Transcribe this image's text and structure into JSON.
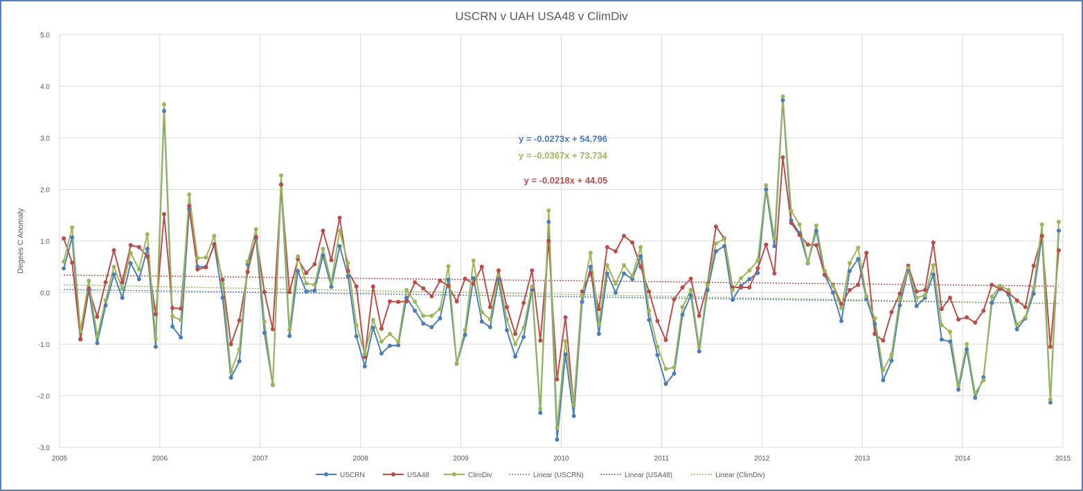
{
  "chart_data": {
    "type": "line",
    "title": "USCRN v UAH USA48 v ClimDiv",
    "ylabel": "Degees  C Anomaly",
    "xlabel": "",
    "xlim": [
      2005,
      2015
    ],
    "ylim": [
      -3.0,
      5.0
    ],
    "x_ticks": [
      "2005",
      "2006",
      "2007",
      "2008",
      "2009",
      "2010",
      "2011",
      "2012",
      "2013",
      "2014",
      "2015"
    ],
    "y_ticks": [
      "5.0",
      "4.0",
      "3.0",
      "2.0",
      "1.0",
      "0.0",
      "-1.0",
      "-2.0",
      "-3.0"
    ],
    "grid": true,
    "legend_position": "bottom",
    "x_start": 2005.042,
    "x_step": 0.08333,
    "series": [
      {
        "name": "USCRN",
        "color": "#4a7ebb",
        "values": [
          0.47,
          1.07,
          -0.91,
          0.05,
          -0.98,
          -0.25,
          0.35,
          -0.1,
          0.57,
          0.26,
          0.85,
          -1.05,
          3.52,
          -0.66,
          -0.87,
          1.62,
          0.5,
          0.5,
          0.93,
          -0.1,
          -1.65,
          -1.33,
          0.55,
          1.05,
          -0.78,
          -1.79,
          2.1,
          -0.84,
          0.42,
          0.02,
          0.04,
          0.72,
          0.11,
          0.9,
          0.32,
          -0.85,
          -1.43,
          -0.68,
          -1.18,
          -1.03,
          -1.02,
          -0.1,
          -0.35,
          -0.6,
          -0.67,
          -0.5,
          0.25,
          -1.38,
          -0.82,
          0.28,
          -0.56,
          -0.67,
          0.25,
          -0.73,
          -1.24,
          -0.86,
          0.05,
          -2.33,
          1.37,
          -2.85,
          -1.2,
          -2.39,
          -0.18,
          0.5,
          -0.8,
          0.37,
          0.0,
          0.37,
          0.26,
          0.7,
          -0.53,
          -1.21,
          -1.77,
          -1.57,
          -0.43,
          -0.05,
          -1.14,
          0.05,
          0.8,
          0.9,
          -0.14,
          0.13,
          0.26,
          0.38,
          2.0,
          0.9,
          3.73,
          1.4,
          1.15,
          0.57,
          1.2,
          0.34,
          0.0,
          -0.55,
          0.42,
          0.65,
          -0.12,
          -0.61,
          -1.7,
          -1.32,
          -0.25,
          0.45,
          -0.26,
          -0.1,
          0.35,
          -0.91,
          -0.95,
          -1.88,
          -1.1,
          -2.04,
          -1.64,
          -0.2,
          0.11,
          -0.04,
          -0.71,
          -0.5,
          -0.02,
          1.1,
          -2.13,
          1.2
        ]
      },
      {
        "name": "USA48",
        "color": "#be4b48",
        "values": [
          1.05,
          0.58,
          -0.9,
          0.08,
          -0.47,
          0.2,
          0.82,
          0.2,
          0.92,
          0.88,
          0.7,
          -0.42,
          1.52,
          -0.3,
          -0.31,
          1.68,
          0.45,
          0.49,
          0.94,
          0.25,
          -1.0,
          -0.54,
          0.4,
          1.08,
          0.01,
          -0.71,
          2.09,
          0.01,
          0.65,
          0.38,
          0.55,
          1.2,
          0.63,
          1.45,
          0.42,
          0.12,
          -1.25,
          0.12,
          -0.7,
          -0.17,
          -0.18,
          -0.17,
          0.2,
          0.08,
          -0.07,
          0.23,
          0.13,
          -0.17,
          0.27,
          0.17,
          0.5,
          -0.28,
          0.43,
          -0.28,
          -0.8,
          -0.2,
          0.43,
          -0.93,
          1.0,
          -1.68,
          -0.48,
          -2.18,
          0.02,
          0.38,
          -0.32,
          0.88,
          0.8,
          1.1,
          0.97,
          0.5,
          0.02,
          -0.55,
          -0.92,
          -0.13,
          0.1,
          0.27,
          -0.45,
          0.17,
          1.28,
          1.05,
          0.1,
          0.1,
          0.1,
          0.47,
          0.93,
          0.37,
          2.62,
          1.35,
          1.12,
          0.93,
          0.92,
          0.35,
          0.15,
          -0.22,
          0.05,
          0.15,
          0.77,
          -0.8,
          -0.93,
          -0.38,
          -0.02,
          0.52,
          0.02,
          0.05,
          0.97,
          -0.32,
          -0.1,
          -0.52,
          -0.48,
          -0.58,
          -0.35,
          0.15,
          0.07,
          0.0,
          -0.15,
          -0.28,
          0.52,
          1.1,
          -1.05,
          0.82
        ]
      },
      {
        "name": "ClimDiv",
        "color": "#98b954",
        "values": [
          0.6,
          1.26,
          -0.75,
          0.23,
          -0.85,
          -0.15,
          0.5,
          0.08,
          0.77,
          0.45,
          1.13,
          -0.9,
          3.65,
          -0.46,
          -0.53,
          1.9,
          0.67,
          0.68,
          1.1,
          0.17,
          -1.53,
          -1.1,
          0.6,
          1.23,
          -0.56,
          -1.78,
          2.27,
          -0.72,
          0.7,
          0.18,
          0.15,
          0.85,
          0.2,
          1.2,
          0.57,
          -0.63,
          -1.19,
          -0.53,
          -0.95,
          -0.8,
          -0.95,
          0.05,
          -0.18,
          -0.45,
          -0.45,
          -0.32,
          0.51,
          -1.37,
          -0.72,
          0.62,
          -0.38,
          -0.52,
          0.33,
          -0.52,
          -1.0,
          -0.68,
          0.12,
          -2.25,
          1.59,
          -2.62,
          -0.94,
          -2.17,
          -0.05,
          0.77,
          -0.6,
          0.53,
          0.17,
          0.53,
          0.32,
          0.88,
          -0.35,
          -1.05,
          -1.48,
          -1.45,
          -0.28,
          0.05,
          -1.05,
          0.15,
          0.95,
          1.04,
          0.05,
          0.28,
          0.43,
          0.62,
          2.08,
          1.05,
          3.8,
          1.58,
          1.32,
          0.58,
          1.3,
          0.42,
          0.13,
          -0.3,
          0.57,
          0.87,
          -0.07,
          -0.5,
          -1.5,
          -1.2,
          -0.1,
          0.48,
          -0.1,
          -0.05,
          0.53,
          -0.63,
          -0.76,
          -1.8,
          -1.0,
          -1.95,
          -1.7,
          -0.08,
          0.13,
          0.05,
          -0.62,
          -0.48,
          0.1,
          1.32,
          -2.07,
          1.37
        ]
      }
    ],
    "trendlines": [
      {
        "name": "Linear (USCRN)",
        "color": "#4a7ebb",
        "slope": -0.0273,
        "intercept": 54.796,
        "equation": "y = -0.0273x + 54.796"
      },
      {
        "name": "Linear (USA48)",
        "color": "#be4b48",
        "slope": -0.0218,
        "intercept": 44.05,
        "equation": "y = -0.0218x + 44.05"
      },
      {
        "name": "Linear (ClimDiv)",
        "color": "#98b954",
        "slope": -0.0367,
        "intercept": 73.734,
        "equation": "y = -0.0367x + 73.734"
      }
    ]
  }
}
